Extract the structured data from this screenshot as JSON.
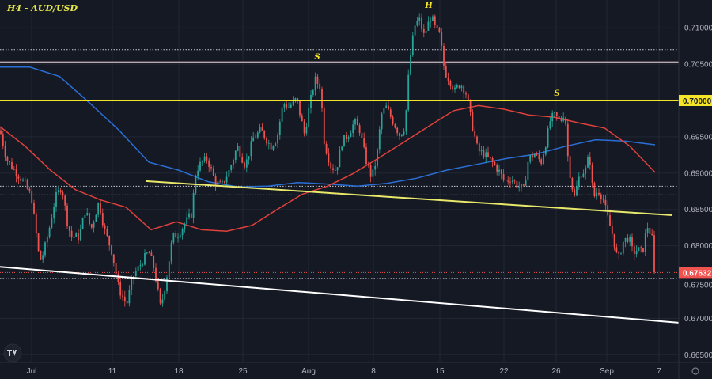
{
  "title": "H4 - AUD/USD",
  "colors": {
    "background": "#151924",
    "up": "#26a69a",
    "down": "#ef5350",
    "ma_fast": "#e0413a",
    "ma_slow": "#2b6fd6",
    "support": "#f5e52a",
    "trend": "#e8e86a",
    "lower_trend": "#ffffff",
    "grid": "#232733"
  },
  "chart_data": {
    "type": "line",
    "symbol": "AUD/USD",
    "timeframe": "H4",
    "ylim": [
      0.6635,
      0.7135
    ],
    "y_ticks": [
      "0.71000",
      "0.70500",
      "0.70000",
      "0.69500",
      "0.69000",
      "0.68500",
      "0.68000",
      "0.67500",
      "0.67000",
      "0.66500"
    ],
    "x_ticks": [
      "Jul",
      "11",
      "18",
      "25",
      "Aug",
      "8",
      "15",
      "22",
      "26",
      "Sep",
      "7"
    ],
    "price_path": [
      0.6959,
      0.692,
      0.6904,
      0.6888,
      0.6866,
      0.6779,
      0.679,
      0.6822,
      0.6866,
      0.6882,
      0.6833,
      0.6812,
      0.6812,
      0.685,
      0.6822,
      0.6861,
      0.6822,
      0.679,
      0.6741,
      0.6719,
      0.6757,
      0.6779,
      0.6792,
      0.6768,
      0.6714,
      0.6752,
      0.6812,
      0.6817,
      0.6833,
      0.6844,
      0.6904,
      0.6915,
      0.692,
      0.6888,
      0.6882,
      0.6904,
      0.6937,
      0.691,
      0.6948,
      0.6959,
      0.6937,
      0.6948,
      0.6997,
      0.6991,
      0.7002,
      0.6953,
      0.6986,
      0.7029,
      0.7019,
      0.6942,
      0.691,
      0.6904,
      0.6942,
      0.6953,
      0.697,
      0.6959,
      0.692,
      0.6893,
      0.692,
      0.698,
      0.6991,
      0.6975,
      0.6953,
      0.6964,
      0.7029,
      0.7073,
      0.7106,
      0.7111,
      0.7089,
      0.7117,
      0.71,
      0.7089,
      0.704,
      0.7029,
      0.7013,
      0.7024,
      0.7008,
      0.697,
      0.6931,
      0.6926,
      0.6915,
      0.6904,
      0.6888,
      0.6893,
      0.6882,
      0.6877,
      0.692,
      0.6926,
      0.6915,
      0.6942,
      0.6975,
      0.698,
      0.697,
      0.6986,
      0.692,
      0.6888,
      0.6866,
      0.6899,
      0.6904,
      0.6926,
      0.6866,
      0.6877,
      0.6866,
      0.6839,
      0.6812,
      0.6779,
      0.6806,
      0.6812,
      0.679,
      0.6795,
      0.679,
      0.6828,
      0.6812,
      0.67632
    ],
    "ma_slow": [
      0.7046,
      0.7046,
      0.7033,
      0.6997,
      0.6959,
      0.6915,
      0.6904,
      0.6888,
      0.6881,
      0.6882,
      0.6887,
      0.6885,
      0.6882,
      0.6886,
      0.6893,
      0.6904,
      0.6912,
      0.692,
      0.6926,
      0.6937,
      0.6946,
      0.6944,
      0.6939
    ],
    "ma_fast": [
      0.6964,
      0.6937,
      0.6904,
      0.6877,
      0.6863,
      0.6853,
      0.6822,
      0.6833,
      0.6822,
      0.682,
      0.6828,
      0.685,
      0.6871,
      0.6882,
      0.6899,
      0.692,
      0.6942,
      0.6964,
      0.6986,
      0.6993,
      0.6988,
      0.698,
      0.6977,
      0.6969,
      0.6962,
      0.6937,
      0.6901
    ],
    "horizontal_levels": {
      "support_resistance": 0.7,
      "upper_level": 0.7053,
      "dotted": [
        0.707,
        0.6882,
        0.687,
        0.6755
      ]
    },
    "trendline_upper": [
      0.6889,
      0.6842
    ],
    "trendline_lower": [
      0.6771,
      0.6694
    ],
    "last_price": "0.67632",
    "highlight_level_label": "0.70000",
    "annotations": [
      "S",
      "H",
      "S"
    ]
  }
}
